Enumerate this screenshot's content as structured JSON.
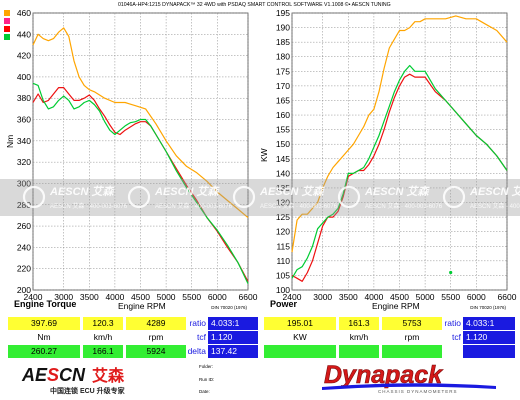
{
  "header": {
    "caption": "01046A-HP4:1215 DYNAPACK™ 32 4WD with PSDAQ SMART CONTROL SOFTWARE V1.1008 ©• AESCN TUNING"
  },
  "colors": {
    "run1": "#ffa500",
    "run2": "#00cc33",
    "run3": "#ee1111",
    "grid": "#8a8a8a",
    "blue_box": "#1a1ae0",
    "yellow_box": "#ffff33",
    "green_box": "#33ee33",
    "swatches": [
      "#ffa500",
      "#ff2288",
      "#ff0000",
      "#00cc33"
    ]
  },
  "watermark": {
    "brand": "AESCN艾森",
    "line": "AESCN 艾森 · 400-003-6076",
    "tiles": [
      {
        "text": "AESCN 艾森"
      },
      {
        "text": "AESCN 艾森"
      },
      {
        "text": "AESCN 艾森"
      },
      {
        "text": "AESCN 艾森"
      },
      {
        "text": "AESCN 艾森"
      }
    ]
  },
  "chart_data": [
    {
      "type": "line",
      "title": "Engine Torque",
      "xlabel": "Engine RPM",
      "ylabel": "Nm",
      "note": "DIN 70020 (1976)",
      "xlim": [
        2400,
        6600
      ],
      "ylim": [
        200,
        460
      ],
      "grid": true,
      "xticks": [
        "2400",
        "3000",
        "3500",
        "4000",
        "4500",
        "5000",
        "5500",
        "6000",
        "6600"
      ],
      "yticks": [
        "460",
        "440",
        "420",
        "400",
        "380",
        "360",
        "340",
        "320",
        "300",
        "280",
        "260",
        "240",
        "220",
        "200"
      ],
      "series": [
        {
          "color": "#ffa500",
          "x": [
            2400,
            2500,
            2600,
            2700,
            2800,
            2900,
            3000,
            3100,
            3200,
            3300,
            3400,
            3500,
            3600,
            3800,
            4000,
            4200,
            4400,
            4600,
            4800,
            5000,
            5200,
            5400,
            5600,
            5800,
            6000,
            6200,
            6400,
            6600
          ],
          "y": [
            430,
            440,
            436,
            434,
            436,
            442,
            446,
            438,
            415,
            400,
            392,
            388,
            386,
            380,
            376,
            376,
            373,
            370,
            356,
            340,
            326,
            316,
            310,
            302,
            292,
            284,
            276,
            268
          ]
        },
        {
          "color": "#ee1111",
          "x": [
            2400,
            2500,
            2600,
            2700,
            2800,
            2900,
            3000,
            3100,
            3200,
            3300,
            3400,
            3500,
            3600,
            3700,
            3800,
            3900,
            4000,
            4100,
            4200,
            4300,
            4400,
            4500,
            4600,
            4700,
            4800,
            5000,
            5200,
            5400,
            5600,
            5800,
            6000,
            6200,
            6400,
            6600
          ],
          "y": [
            376,
            384,
            376,
            378,
            384,
            390,
            390,
            384,
            378,
            378,
            380,
            383,
            378,
            370,
            363,
            355,
            348,
            346,
            350,
            353,
            356,
            358,
            358,
            354,
            346,
            330,
            314,
            298,
            284,
            268,
            255,
            240,
            226,
            208
          ]
        },
        {
          "color": "#00cc33",
          "x": [
            2400,
            2500,
            2600,
            2700,
            2800,
            2900,
            3000,
            3100,
            3200,
            3300,
            3400,
            3500,
            3600,
            3700,
            3800,
            3900,
            4000,
            4100,
            4200,
            4300,
            4400,
            4500,
            4600,
            4700,
            4800,
            5000,
            5200,
            5400,
            5600,
            5800,
            6000,
            6200,
            6400,
            6600
          ],
          "y": [
            394,
            392,
            378,
            370,
            372,
            378,
            382,
            378,
            370,
            372,
            376,
            378,
            374,
            368,
            358,
            350,
            346,
            350,
            354,
            357,
            358,
            360,
            360,
            354,
            346,
            330,
            312,
            296,
            282,
            268,
            256,
            242,
            226,
            206
          ]
        }
      ]
    },
    {
      "type": "line",
      "title": "Power",
      "xlabel": "Engine RPM",
      "ylabel": "KW",
      "note": "DIN 70020 (1976)",
      "xlim": [
        2400,
        6600
      ],
      "ylim": [
        100,
        195
      ],
      "grid": true,
      "xticks": [
        "2400",
        "3000",
        "3500",
        "4000",
        "4500",
        "5000",
        "5500",
        "6000",
        "6600"
      ],
      "yticks": [
        "195",
        "190",
        "185",
        "180",
        "175",
        "170",
        "165",
        "160",
        "155",
        "150",
        "145",
        "140",
        "135",
        "130",
        "125",
        "120",
        "115",
        "110",
        "105",
        "100"
      ],
      "series": [
        {
          "color": "#ffa500",
          "x": [
            2400,
            2500,
            2600,
            2700,
            2800,
            2900,
            3000,
            3100,
            3200,
            3300,
            3400,
            3500,
            3600,
            3700,
            3800,
            3900,
            4000,
            4100,
            4200,
            4300,
            4400,
            4500,
            4600,
            4700,
            4800,
            4900,
            5000,
            5200,
            5400,
            5600,
            5800,
            6000,
            6200,
            6400,
            6600
          ],
          "y": [
            113,
            124,
            126,
            126,
            128,
            130,
            135,
            139,
            142,
            144,
            146,
            148,
            150,
            153,
            156,
            160,
            162,
            168,
            176,
            183,
            186,
            189,
            189,
            190,
            192,
            192,
            193,
            193,
            193,
            194,
            193,
            193,
            191,
            189,
            185
          ]
        },
        {
          "color": "#ee1111",
          "x": [
            2400,
            2500,
            2600,
            2700,
            2800,
            2900,
            3000,
            3100,
            3200,
            3300,
            3400,
            3500,
            3600,
            3700,
            3800,
            3900,
            4000,
            4100,
            4200,
            4300,
            4400,
            4500,
            4600,
            4700,
            4800,
            5000,
            5200,
            5400,
            5600,
            5800,
            6000,
            6200,
            6400,
            6600
          ],
          "y": [
            105,
            104,
            103,
            106,
            110,
            116,
            122,
            125,
            125,
            127,
            132,
            139,
            140,
            141,
            141,
            143,
            146,
            150,
            155,
            161,
            166,
            170,
            173,
            174,
            173,
            173,
            168,
            165,
            161,
            157,
            153,
            150,
            146,
            141
          ]
        },
        {
          "color": "#00cc33",
          "x": [
            2400,
            2500,
            2600,
            2700,
            2800,
            2900,
            3000,
            3100,
            3200,
            3300,
            3400,
            3500,
            3600,
            3700,
            3800,
            3900,
            4000,
            4100,
            4200,
            4300,
            4400,
            4500,
            4600,
            4700,
            4800,
            5000,
            5200,
            5400,
            5600,
            5800,
            6000,
            6200,
            6400,
            6600
          ],
          "y": [
            104,
            107,
            108,
            111,
            115,
            121,
            123,
            125,
            126,
            128,
            133,
            140,
            140,
            141,
            142,
            145,
            149,
            153,
            158,
            163,
            168,
            172,
            175,
            177,
            175,
            175,
            169,
            165,
            161,
            157,
            153,
            150,
            146,
            141
          ]
        }
      ],
      "points": [
        {
          "x": 5500,
          "y": 106,
          "color": "#00cc33"
        }
      ]
    }
  ],
  "panels": {
    "left": {
      "row1": [
        "397.69",
        "120.3",
        "4289"
      ],
      "units": [
        "Nm",
        "km/h",
        "rpm"
      ],
      "row3": [
        "260.27",
        "166.1",
        "5924"
      ],
      "right_labels": [
        "ratio",
        "tcf",
        "delta"
      ],
      "right_values": [
        "4.033:1",
        "1.120",
        "137.42"
      ]
    },
    "right": {
      "row1": [
        "195.01",
        "161.3",
        "5753"
      ],
      "units": [
        "KW",
        "km/h",
        "rpm"
      ],
      "right_labels": [
        "ratio",
        "tcf"
      ],
      "right_values": [
        "4.033:1",
        "1.120"
      ]
    }
  },
  "footer": {
    "logo_text": "AESCN艾森",
    "slogan": "中国连锁 ECU 升级专家",
    "fields": [
      "Folder:",
      "Run ID:",
      "Date:"
    ],
    "brand": "Dynapack",
    "brand_sub": "CHASSIS DYNAMOMETERS"
  }
}
